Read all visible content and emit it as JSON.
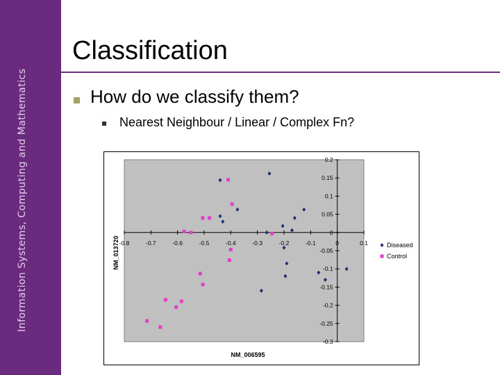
{
  "sidebar": {
    "text": "Information Systems, Computing and Mathematics",
    "color": "#6a2b7e"
  },
  "slide": {
    "title": "Classification",
    "bullet1": "How do we classify them?",
    "bullet2": "Nearest Neighbour / Linear / Complex Fn?"
  },
  "chart_data": {
    "type": "scatter",
    "xlabel": "NM_006595",
    "ylabel": "NM_013720",
    "xlim": [
      -0.8,
      0.1
    ],
    "ylim": [
      -0.3,
      0.2
    ],
    "x_ticks": [
      "-0.8",
      "-0.7",
      "-0.6",
      "-0.5",
      "-0.4",
      "-0.3",
      "-0.2",
      "-0.1",
      "0",
      "0.1"
    ],
    "y_ticks": [
      "0.2",
      "0.15",
      "0.1",
      "0.05",
      "0",
      "-0.05",
      "-0.1",
      "-0.15",
      "-0.2",
      "-0.25",
      "-0.3"
    ],
    "grid": false,
    "background": "#c0c0c0",
    "legend_position": "right",
    "series": [
      {
        "name": "Diseased",
        "marker": "diamond",
        "color": "#1f2f6f",
        "points": [
          [
            -0.255,
            0.162
          ],
          [
            -0.44,
            0.144
          ],
          [
            -0.375,
            0.063
          ],
          [
            -0.44,
            0.045
          ],
          [
            -0.43,
            0.03
          ],
          [
            -0.125,
            0.063
          ],
          [
            -0.16,
            0.04
          ],
          [
            -0.205,
            0.018
          ],
          [
            -0.17,
            0.006
          ],
          [
            -0.265,
            0.0
          ],
          [
            -0.2,
            -0.042
          ],
          [
            -0.19,
            -0.085
          ],
          [
            -0.195,
            -0.12
          ],
          [
            -0.07,
            -0.11
          ],
          [
            0.035,
            -0.1
          ],
          [
            -0.045,
            -0.13
          ],
          [
            -0.285,
            -0.16
          ]
        ]
      },
      {
        "name": "Control",
        "marker": "square",
        "color": "#e040c8",
        "points": [
          [
            -0.41,
            0.145
          ],
          [
            -0.395,
            0.078
          ],
          [
            -0.48,
            0.04
          ],
          [
            -0.505,
            0.04
          ],
          [
            -0.575,
            0.003
          ],
          [
            -0.55,
            0.0
          ],
          [
            -0.245,
            -0.003
          ],
          [
            -0.4,
            -0.047
          ],
          [
            -0.405,
            -0.076
          ],
          [
            -0.515,
            -0.113
          ],
          [
            -0.505,
            -0.143
          ],
          [
            -0.645,
            -0.185
          ],
          [
            -0.585,
            -0.189
          ],
          [
            -0.605,
            -0.205
          ],
          [
            -0.715,
            -0.243
          ],
          [
            -0.665,
            -0.26
          ]
        ]
      }
    ]
  }
}
